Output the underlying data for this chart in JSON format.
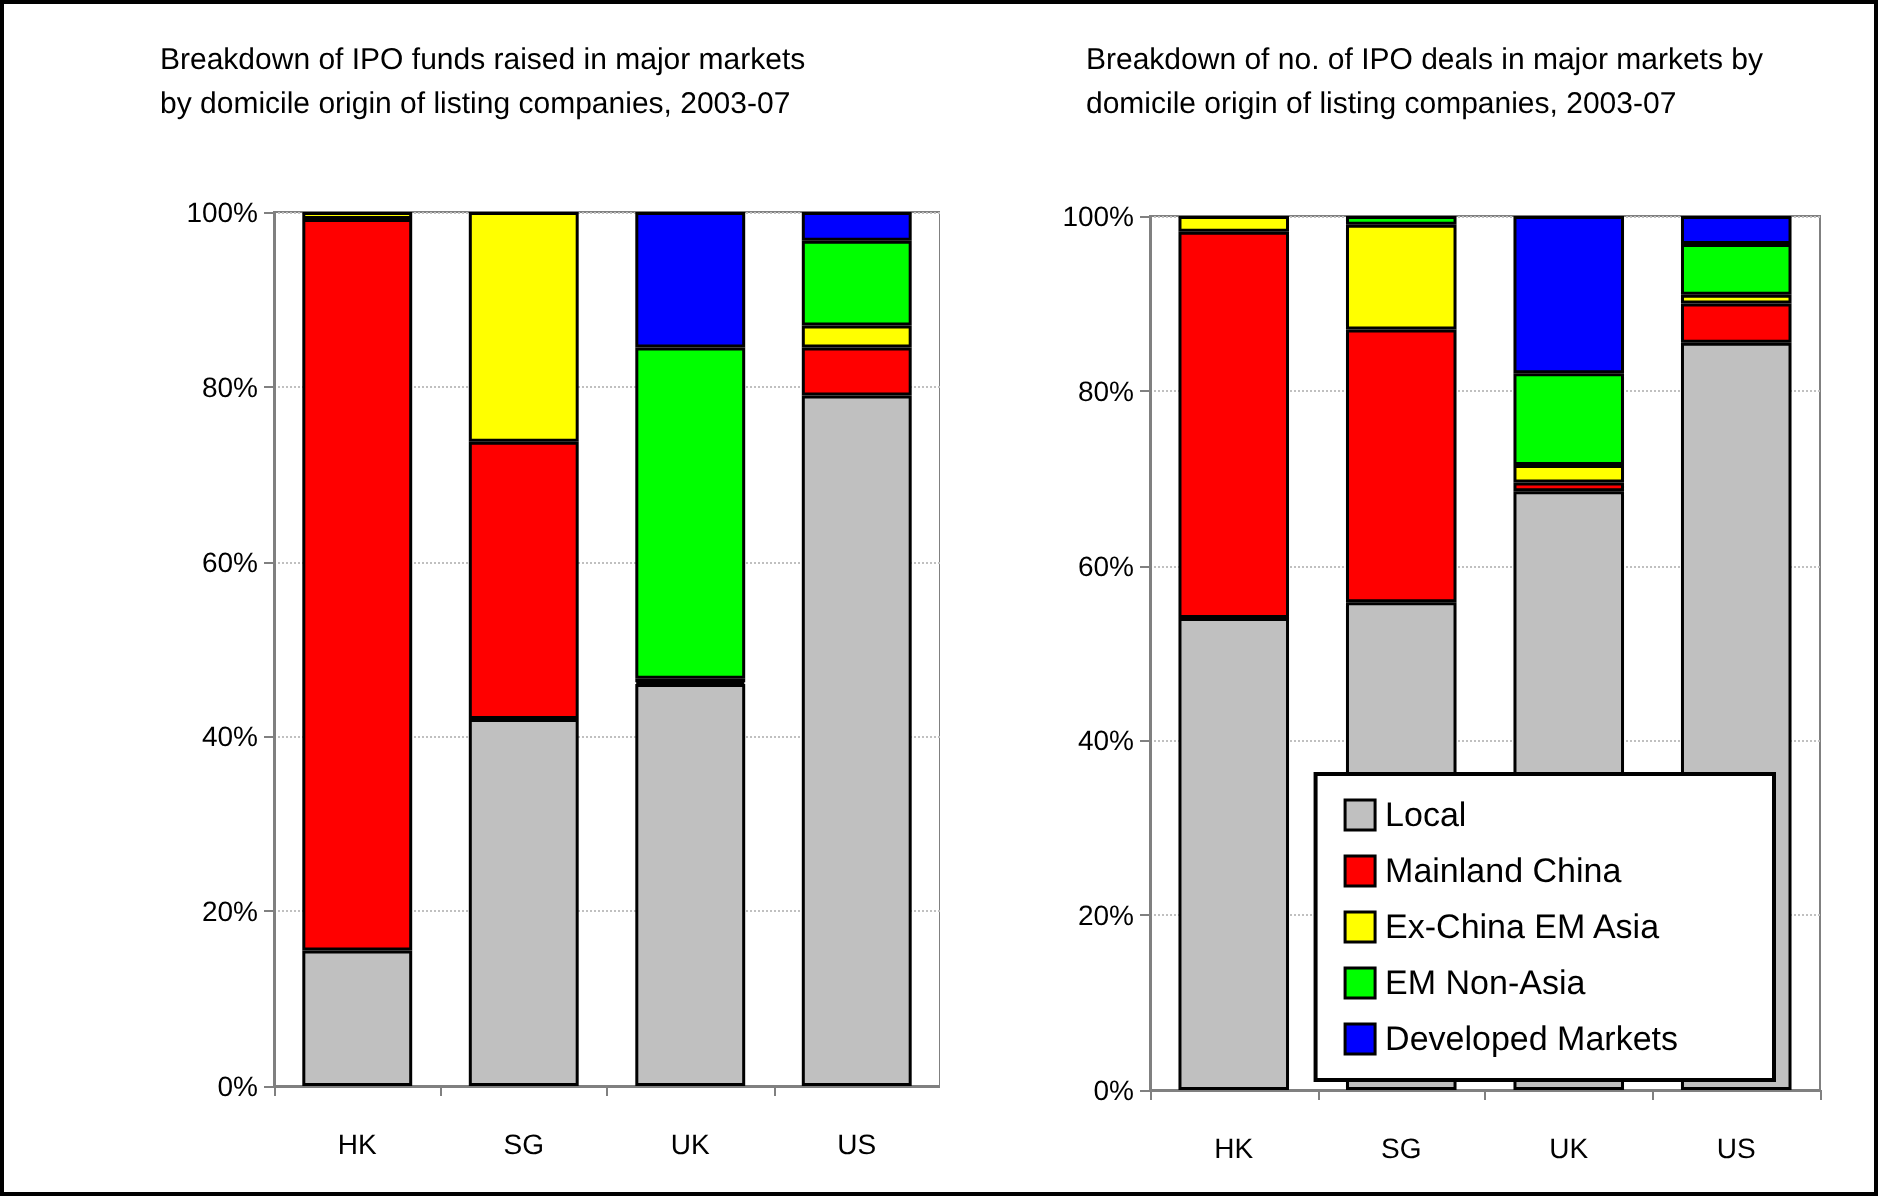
{
  "chart_data": [
    {
      "type": "bar",
      "title": "Breakdown of IPO funds raised in major markets by domicile origin of listing companies, 2003-07",
      "categories": [
        "HK",
        "SG",
        "UK",
        "US"
      ],
      "stacked": true,
      "ylim": [
        0,
        100
      ],
      "yticks": [
        {
          "value": 0,
          "label": "0%"
        },
        {
          "value": 20,
          "label": "20%"
        },
        {
          "value": 40,
          "label": "40%"
        },
        {
          "value": 60,
          "label": "60%"
        },
        {
          "value": 80,
          "label": "80%"
        },
        {
          "value": 100,
          "label": "100%"
        }
      ],
      "grid": "y",
      "legend": false,
      "series": [
        {
          "color": "#c0c0c0",
          "values": [
            15.5,
            42,
            46,
            79
          ]
        },
        {
          "color": "#ff0000",
          "values": [
            83.7,
            31.7,
            0.2,
            5.5
          ]
        },
        {
          "color": "#ffff00",
          "values": [
            0.8,
            26.3,
            0.4,
            2.5
          ]
        },
        {
          "color": "#00ff00",
          "values": [
            null,
            null,
            37.9,
            9.7
          ]
        },
        {
          "color": "#0000ff",
          "values": [
            null,
            null,
            15.5,
            3.3
          ]
        }
      ]
    },
    {
      "type": "bar",
      "title": "Breakdown of no. of IPO deals in major markets by domicile origin of listing companies, 2003-07",
      "categories": [
        "HK",
        "SG",
        "UK",
        "US"
      ],
      "stacked": true,
      "ylim": [
        0,
        100
      ],
      "yticks": [
        {
          "value": 0,
          "label": "0%"
        },
        {
          "value": 20,
          "label": "20%"
        },
        {
          "value": 40,
          "label": "40%"
        },
        {
          "value": 60,
          "label": "60%"
        },
        {
          "value": 80,
          "label": "80%"
        },
        {
          "value": 100,
          "label": "100%"
        }
      ],
      "grid": "y",
      "legend": "bottom right",
      "series": [
        {
          "name": "Local",
          "color": "#c0c0c0",
          "values": [
            54,
            55.8,
            68.5,
            85.5
          ]
        },
        {
          "name": "Mainland China",
          "color": "#ff0000",
          "values": [
            44.2,
            31.2,
            1,
            4.5
          ]
        },
        {
          "name": "Ex-China EM Asia",
          "color": "#ffff00",
          "values": [
            1.8,
            12,
            2,
            1
          ]
        },
        {
          "name": "EM Non-Asia",
          "color": "#00ff00",
          "values": [
            null,
            1,
            10.5,
            5.8
          ]
        },
        {
          "name": "Developed Markets",
          "color": "#0000ff",
          "values": [
            null,
            null,
            18,
            3.2
          ]
        }
      ]
    }
  ]
}
